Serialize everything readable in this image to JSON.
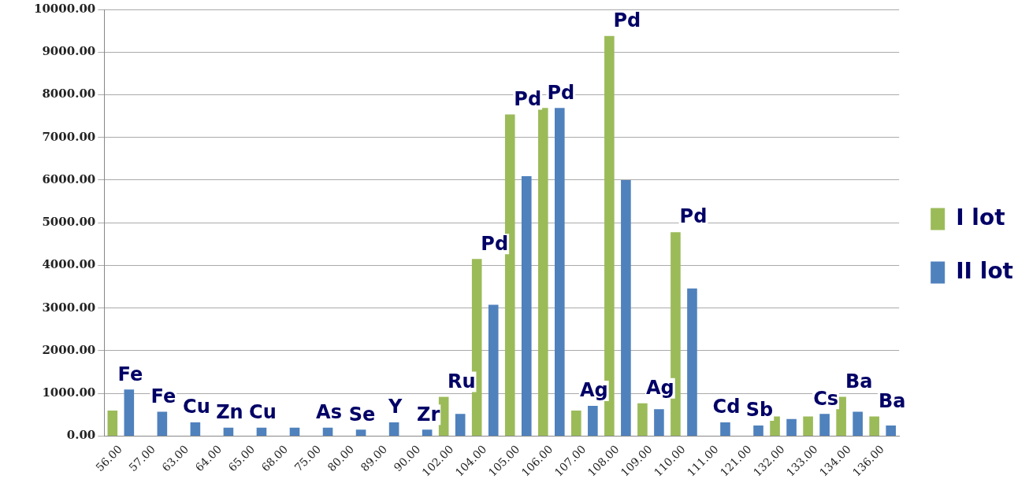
{
  "chart_data": {
    "type": "bar",
    "categories": [
      "56.00",
      "57.00",
      "63.00",
      "64.00",
      "65.00",
      "68.00",
      "75.00",
      "80.00",
      "89.00",
      "90.00",
      "102.00",
      "104.00",
      "105.00",
      "106.00",
      "107.00",
      "108.00",
      "109.00",
      "110.00",
      "111.00",
      "121.00",
      "132.00",
      "133.00",
      "134.00",
      "136.00"
    ],
    "series": [
      {
        "name": "I lot",
        "color": "#9bbb59",
        "values": [
          600,
          null,
          null,
          null,
          null,
          null,
          null,
          null,
          null,
          null,
          920,
          4150,
          7540,
          7690,
          600,
          9380,
          770,
          4780,
          null,
          null,
          460,
          460,
          920,
          460
        ]
      },
      {
        "name": "II lot",
        "color": "#4f81bd",
        "values": [
          1090,
          570,
          320,
          200,
          200,
          200,
          200,
          150,
          320,
          150,
          520,
          3080,
          6090,
          7690,
          710,
          6000,
          630,
          3460,
          320,
          250,
          400,
          520,
          570,
          250
        ]
      }
    ],
    "ylim": [
      0,
      10000
    ],
    "yticks": [
      {
        "value": 0,
        "label": "0.00"
      },
      {
        "value": 1000,
        "label": "1000.00"
      },
      {
        "value": 2000,
        "label": "2000.00"
      },
      {
        "value": 3000,
        "label": "3000.00"
      },
      {
        "value": 4000,
        "label": "4000.00"
      },
      {
        "value": 5000,
        "label": "5000.00"
      },
      {
        "value": 6000,
        "label": "6000.00"
      },
      {
        "value": 7000,
        "label": "7000.00"
      },
      {
        "value": 8000,
        "label": "8000.00"
      },
      {
        "value": 9000,
        "label": "9000.00"
      },
      {
        "value": 10000,
        "label": "10000.00"
      }
    ],
    "grid": "y",
    "legend": "right",
    "annotations": [
      {
        "text": "Fe",
        "x": "56.00",
        "y": 1090
      },
      {
        "text": "Fe",
        "x": "57.00",
        "y": 570
      },
      {
        "text": "Cu",
        "x": "63.00",
        "y": 320
      },
      {
        "text": "Zn",
        "x": "64.00",
        "y": 200
      },
      {
        "text": "Cu",
        "x": "65.00",
        "y": 200
      },
      {
        "text": "As",
        "x": "75.00",
        "y": 200
      },
      {
        "text": "Se",
        "x": "80.00",
        "y": 150
      },
      {
        "text": "Y",
        "x": "89.00",
        "y": 320
      },
      {
        "text": "Zr",
        "x": "90.00",
        "y": 150
      },
      {
        "text": "Ru",
        "x": "102.00",
        "y": 920
      },
      {
        "text": "Pd",
        "x": "104.00",
        "y": 4150
      },
      {
        "text": "Pd",
        "x": "105.00",
        "y": 7540
      },
      {
        "text": "Pd",
        "x": "106.00",
        "y": 7690
      },
      {
        "text": "Ag",
        "x": "107.00",
        "y": 710
      },
      {
        "text": "Pd",
        "x": "108.00",
        "y": 9380
      },
      {
        "text": "Ag",
        "x": "109.00",
        "y": 770
      },
      {
        "text": "Pd",
        "x": "110.00",
        "y": 4780
      },
      {
        "text": "Cd",
        "x": "111.00",
        "y": 320
      },
      {
        "text": "Sb",
        "x": "121.00",
        "y": 250
      },
      {
        "text": "Cs",
        "x": "133.00",
        "y": 520
      },
      {
        "text": "Ba",
        "x": "134.00",
        "y": 920
      },
      {
        "text": "Ba",
        "x": "136.00",
        "y": 460
      }
    ]
  }
}
